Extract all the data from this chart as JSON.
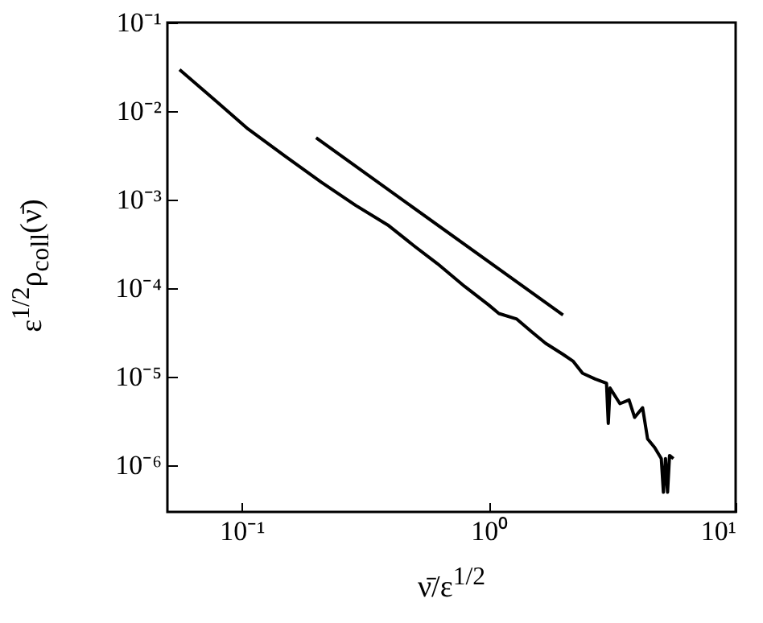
{
  "chart_data": {
    "type": "line",
    "xlabel": "ν̄/ε$^{1/2}$",
    "ylabel": "ε$^{1/2}$ρ$_{coll}$(ν̄)",
    "log": "xy",
    "xlim": [
      0.05,
      10
    ],
    "ylim": [
      3e-07,
      0.1
    ],
    "xticks": [
      {
        "value": 0.1,
        "label": "10⁻¹"
      },
      {
        "value": 1,
        "label": "10⁰"
      },
      {
        "value": 10,
        "label": "10¹"
      }
    ],
    "yticks": [
      {
        "value": 1e-06,
        "label": "10⁻⁶"
      },
      {
        "value": 1e-05,
        "label": "10⁻⁵"
      },
      {
        "value": 0.0001,
        "label": "10⁻⁴"
      },
      {
        "value": 0.001,
        "label": "10⁻³"
      },
      {
        "value": 0.01,
        "label": "10⁻²"
      },
      {
        "value": 0.1,
        "label": "10⁻¹"
      }
    ],
    "series": [
      {
        "color": "#000000",
        "x": [
          0.056,
          0.08,
          0.106,
          0.15,
          0.21,
          0.29,
          0.39,
          0.5,
          0.62,
          0.8,
          1.0,
          1.1,
          1.3,
          1.5,
          1.7,
          2.0,
          2.2,
          2.4,
          2.7,
          3.0,
          3.05,
          3.1,
          3.4,
          3.7,
          3.9,
          4.2,
          4.4,
          4.7,
          5.0,
          5.1,
          5.2,
          5.3,
          5.4,
          5.6
        ],
        "values": [
          0.0294,
          0.0125,
          0.0063,
          0.0031,
          0.00158,
          0.00086,
          0.00052,
          0.0003,
          0.00019,
          0.000105,
          6.5e-05,
          5.2e-05,
          4.5e-05,
          3.2e-05,
          2.4e-05,
          1.8e-05,
          1.5e-05,
          1.1e-05,
          9.5e-06,
          8.5e-06,
          3e-06,
          7.5e-06,
          5e-06,
          5.5e-06,
          3.5e-06,
          4.5e-06,
          2e-06,
          1.6e-06,
          1.2e-06,
          5e-07,
          1.2e-06,
          5e-07,
          1.3e-06,
          1.2e-06
        ]
      },
      {
        "type": "line",
        "color": "#000000",
        "x": [
          0.2,
          2
        ],
        "values": [
          0.005,
          5e-05
        ]
      }
    ]
  }
}
